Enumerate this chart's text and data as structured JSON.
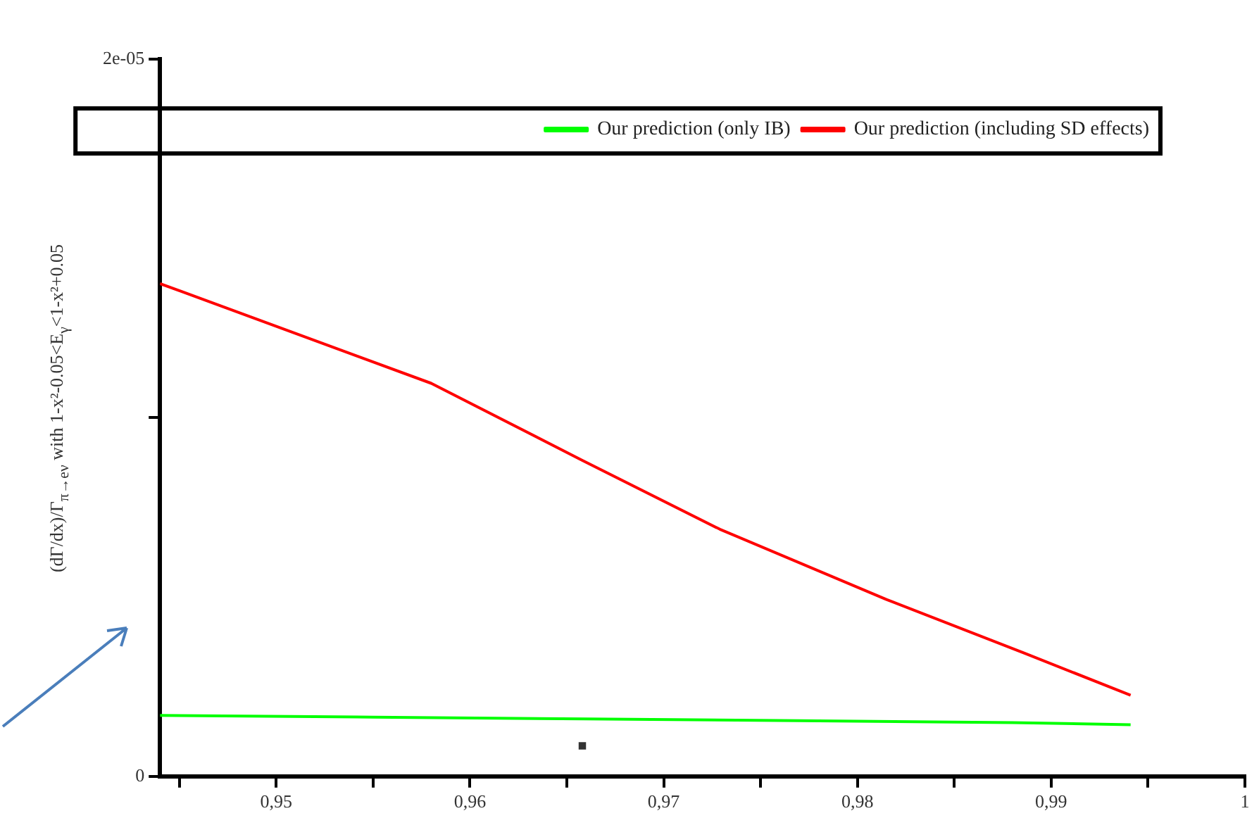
{
  "chart_data": {
    "type": "line",
    "ylabel": "(dΓ/dx)/Γ$_{π→eν}$ with 1-x²-0.05<E$_{γ}$<1-x²+0.05",
    "xlim": [
      0.944,
      1
    ],
    "xticks": [
      {
        "value": 0.945,
        "label": null
      },
      {
        "value": 0.95,
        "label": "0,95"
      },
      {
        "value": 0.955,
        "label": null
      },
      {
        "value": 0.96,
        "label": "0,96"
      },
      {
        "value": 0.965,
        "label": null
      },
      {
        "value": 0.97,
        "label": "0,97"
      },
      {
        "value": 0.975,
        "label": null
      },
      {
        "value": 0.98,
        "label": "0,98"
      },
      {
        "value": 0.985,
        "label": null
      },
      {
        "value": 0.99,
        "label": "0,99"
      },
      {
        "value": 0.995,
        "label": null
      },
      1
    ],
    "ylim": [
      0,
      2e-05
    ],
    "yticks": [
      0,
      {
        "value": 1e-05,
        "label": null
      },
      {
        "value": 2e-05,
        "label": "2e-05"
      }
    ],
    "grid": false,
    "legend": "top right",
    "series": [
      {
        "type": "scatter",
        "color": "#333333",
        "marker": "square",
        "x": [
          0.9658
        ],
        "values": [
          8.5e-07
        ]
      },
      {
        "name": "Our prediction (only IB)",
        "color": "#00ff00",
        "x": [
          0.944,
          0.955,
          0.966,
          0.977,
          0.988,
          0.9941
        ],
        "values": [
          1.7e-06,
          1.65e-06,
          1.6e-06,
          1.55e-06,
          1.5e-06,
          1.44e-06
        ]
      },
      {
        "name": "Our prediction (including SD effects)",
        "color": "#ff0000",
        "x": [
          0.944,
          0.958,
          0.9658,
          0.9729,
          0.9815,
          0.9886,
          0.9941
        ],
        "values": [
          1.374e-05,
          1.096e-05,
          8.81e-06,
          6.89e-06,
          4.93e-06,
          3.44e-06,
          2.26e-06
        ]
      }
    ]
  }
}
